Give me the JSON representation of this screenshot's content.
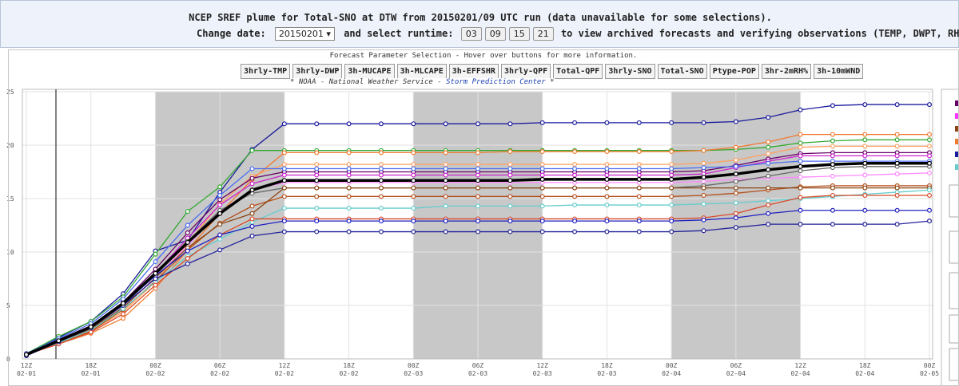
{
  "header": {
    "title": "NCEP SREF plume for Total-SNO at DTW from 20150201/09 UTC run (data unavailable for some selections).",
    "change_date_label": "Change date:",
    "date_value": "20150201 ▾",
    "runtime_label": "and select runtime:",
    "runtimes": [
      "03",
      "09",
      "15",
      "21"
    ],
    "tail": "to view archived forecasts and verifying observations (TEMP, DWPT, RH, WIND)"
  },
  "panel": {
    "title": "Forecast Parameter Selection - Hover over buttons for more information.",
    "buttons": [
      "3hrly-TMP",
      "3hrly-DWP",
      "3h-MUCAPE",
      "3h-MLCAPE",
      "3h-EFFSHR",
      "3hrly-QPF",
      "Total-QPF",
      "3hrly-SNO",
      "Total-SNO",
      "Ptype-POP",
      "3hr-2mRH%",
      "3h-10mWND"
    ],
    "credit_start": "* NOAA - National Weather Service - ",
    "credit_link": "Storm Prediction Center",
    "credit_end": " *"
  },
  "chart_data": {
    "type": "line",
    "grid": true,
    "categories": [
      [
        "12Z",
        "02-01"
      ],
      null,
      [
        "18Z",
        "02-01"
      ],
      null,
      [
        "00Z",
        "02-02"
      ],
      null,
      [
        "06Z",
        "02-02"
      ],
      null,
      [
        "12Z",
        "02-02"
      ],
      null,
      [
        "18Z",
        "02-02"
      ],
      null,
      [
        "00Z",
        "02-03"
      ],
      null,
      [
        "06Z",
        "02-03"
      ],
      null,
      [
        "12Z",
        "02-03"
      ],
      null,
      [
        "18Z",
        "02-03"
      ],
      null,
      [
        "00Z",
        "02-04"
      ],
      null,
      [
        "06Z",
        "02-04"
      ],
      null,
      [
        "12Z",
        "02-04"
      ],
      null,
      [
        "18Z",
        "02-04"
      ],
      null,
      [
        "00Z",
        "02-05"
      ]
    ],
    "ylim": [
      0,
      25
    ],
    "yticks": [
      0,
      5,
      10,
      15,
      20,
      25
    ],
    "series": [
      {
        "color": "#1a1a9c",
        "values": [
          0.4,
          2.0,
          3.5,
          6.1,
          10.1,
          11.1,
          15.6,
          19.6,
          22.0,
          22.0,
          22.0,
          22.0,
          22.0,
          22.0,
          22.0,
          22.0,
          22.1,
          22.1,
          22.1,
          22.1,
          22.1,
          22.1,
          22.2,
          22.6,
          23.3,
          23.7,
          23.8,
          23.8,
          23.8
        ]
      },
      {
        "color": "#33aa33",
        "values": [
          0.5,
          2.1,
          3.5,
          5.8,
          9.8,
          13.8,
          16.1,
          19.5,
          19.5,
          19.5,
          19.5,
          19.5,
          19.5,
          19.5,
          19.5,
          19.5,
          19.5,
          19.5,
          19.5,
          19.5,
          19.5,
          19.5,
          19.6,
          19.8,
          20.2,
          20.4,
          20.5,
          20.5,
          20.5
        ]
      },
      {
        "color": "#f07a30",
        "values": [
          0.4,
          1.4,
          2.4,
          3.8,
          6.6,
          10.2,
          13.6,
          16.8,
          19.3,
          19.3,
          19.3,
          19.3,
          19.3,
          19.3,
          19.3,
          19.4,
          19.4,
          19.4,
          19.4,
          19.4,
          19.4,
          19.5,
          19.8,
          20.3,
          21.0,
          21.0,
          21.0,
          21.0,
          21.0
        ]
      },
      {
        "color": "#ffa060",
        "values": [
          0.4,
          1.5,
          2.6,
          4.4,
          7.2,
          10.8,
          14.5,
          17.1,
          18.2,
          18.2,
          18.2,
          18.2,
          18.2,
          18.2,
          18.2,
          18.2,
          18.2,
          18.2,
          18.2,
          18.2,
          18.2,
          18.3,
          18.6,
          19.2,
          19.8,
          19.9,
          19.9,
          19.9,
          19.9
        ]
      },
      {
        "color": "#660066",
        "values": [
          0.5,
          1.8,
          3.1,
          5.3,
          8.4,
          11.8,
          14.9,
          16.9,
          17.5,
          17.5,
          17.5,
          17.5,
          17.5,
          17.5,
          17.5,
          17.5,
          17.5,
          17.5,
          17.5,
          17.5,
          17.5,
          17.6,
          18.1,
          18.7,
          19.2,
          19.3,
          19.3,
          19.3,
          19.3
        ]
      },
      {
        "color": "#cc22cc",
        "values": [
          0.4,
          1.7,
          2.9,
          5.0,
          8.0,
          11.3,
          14.4,
          16.4,
          17.2,
          17.2,
          17.2,
          17.2,
          17.2,
          17.2,
          17.2,
          17.2,
          17.2,
          17.2,
          17.2,
          17.2,
          17.2,
          17.3,
          17.9,
          18.5,
          19.0,
          19.0,
          19.0,
          19.0,
          19.0
        ]
      },
      {
        "color": "#4a6cf0",
        "values": [
          0.5,
          1.9,
          3.3,
          5.6,
          9.1,
          12.5,
          15.3,
          17.8,
          17.8,
          17.8,
          17.8,
          17.8,
          17.8,
          17.8,
          17.8,
          17.8,
          17.8,
          17.8,
          17.8,
          17.8,
          17.8,
          17.9,
          18.0,
          18.3,
          18.5,
          18.5,
          18.5,
          18.5,
          18.5
        ]
      },
      {
        "color": "#ff88ff",
        "values": [
          0.4,
          1.6,
          2.8,
          4.8,
          7.6,
          10.6,
          13.8,
          15.8,
          16.5,
          16.5,
          16.5,
          16.5,
          16.5,
          16.5,
          16.5,
          16.5,
          16.5,
          16.5,
          16.5,
          16.5,
          16.5,
          16.6,
          16.8,
          16.9,
          17.0,
          17.1,
          17.2,
          17.3,
          17.4
        ]
      },
      {
        "color": "#666666",
        "values": [
          0.4,
          1.7,
          2.9,
          5.0,
          7.9,
          11.0,
          13.9,
          15.5,
          16.0,
          16.0,
          16.0,
          16.0,
          16.0,
          16.0,
          16.0,
          16.0,
          16.0,
          16.0,
          16.0,
          16.0,
          16.0,
          16.2,
          16.6,
          17.1,
          17.6,
          17.9,
          18.0,
          18.0,
          18.0
        ]
      },
      {
        "color": "#b5501c",
        "values": [
          0.4,
          1.5,
          2.6,
          4.6,
          7.3,
          10.2,
          12.7,
          14.3,
          15.2,
          15.2,
          15.2,
          15.2,
          15.2,
          15.2,
          15.2,
          15.2,
          15.2,
          15.2,
          15.2,
          15.2,
          15.2,
          15.3,
          15.5,
          15.8,
          16.1,
          16.2,
          16.2,
          16.2,
          16.2
        ]
      },
      {
        "color": "#8b4513",
        "values": [
          0.4,
          1.6,
          2.8,
          4.8,
          7.6,
          10.4,
          12.6,
          13.6,
          16.0,
          16.0,
          16.0,
          16.0,
          16.0,
          16.0,
          16.0,
          16.0,
          16.0,
          16.0,
          16.0,
          16.0,
          16.0,
          16.0,
          16.0,
          16.0,
          16.0,
          16.0,
          16.0,
          16.0,
          16.0
        ]
      },
      {
        "color": "#66cccc",
        "values": [
          0.4,
          1.5,
          2.7,
          4.7,
          7.2,
          9.6,
          11.2,
          12.8,
          14.1,
          14.1,
          14.1,
          14.1,
          14.1,
          14.3,
          14.3,
          14.3,
          14.3,
          14.4,
          14.4,
          14.4,
          14.4,
          14.5,
          14.6,
          14.8,
          15.0,
          15.2,
          15.4,
          15.6,
          15.8
        ]
      },
      {
        "color": "#d84a28",
        "values": [
          0.4,
          1.4,
          2.5,
          4.2,
          6.9,
          9.4,
          11.6,
          13.1,
          13.1,
          13.1,
          13.1,
          13.1,
          13.1,
          13.1,
          13.1,
          13.1,
          13.1,
          13.1,
          13.1,
          13.1,
          13.1,
          13.2,
          13.6,
          14.4,
          15.1,
          15.3,
          15.3,
          15.3,
          15.3
        ]
      },
      {
        "color": "#2020c0",
        "values": [
          0.3,
          1.6,
          2.9,
          5.1,
          7.8,
          10.1,
          11.6,
          12.4,
          12.9,
          12.9,
          12.9,
          12.9,
          12.9,
          12.9,
          12.9,
          12.9,
          12.9,
          12.9,
          12.9,
          12.9,
          12.9,
          13.0,
          13.2,
          13.6,
          13.9,
          13.9,
          13.9,
          13.9,
          13.9
        ]
      },
      {
        "color": "#22229a",
        "values": [
          0.3,
          1.6,
          2.9,
          5.0,
          7.5,
          8.9,
          10.2,
          11.5,
          11.9,
          11.9,
          11.9,
          11.9,
          11.9,
          11.9,
          11.9,
          11.9,
          11.9,
          11.9,
          11.9,
          11.9,
          11.9,
          12.0,
          12.3,
          12.6,
          12.6,
          12.6,
          12.6,
          12.6,
          12.9
        ]
      },
      {
        "color": "#000000",
        "values": [
          0.4,
          1.7,
          3.0,
          5.2,
          8.0,
          10.9,
          13.6,
          15.8,
          16.7,
          16.7,
          16.7,
          16.7,
          16.7,
          16.7,
          16.7,
          16.7,
          16.8,
          16.8,
          16.8,
          16.8,
          16.8,
          17.0,
          17.3,
          17.7,
          18.0,
          18.2,
          18.3,
          18.3,
          18.3
        ]
      }
    ]
  }
}
